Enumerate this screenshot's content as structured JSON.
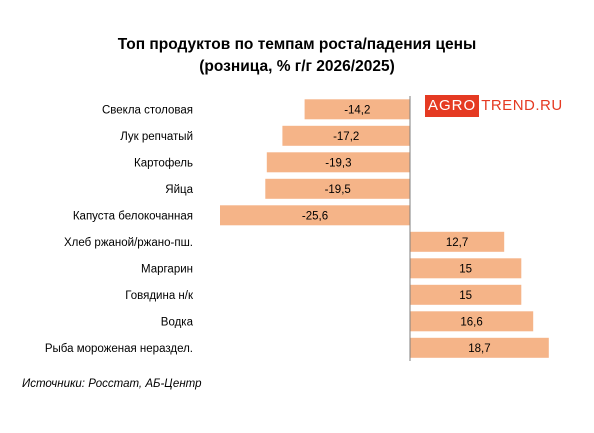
{
  "title_line1": "Топ продуктов по темпам роста/падения цены",
  "title_line2": "(розница, % г/г 2026/2025)",
  "source": "Источники: Росстат, АБ-Центр",
  "logo": {
    "boxed": "AGRO",
    "rest": "TREND.RU"
  },
  "colors": {
    "bar": "#f5b488",
    "axis": "#7f7f7f",
    "logo": "#e53a22"
  },
  "chart_data": {
    "type": "bar",
    "orientation": "horizontal",
    "title": "Топ продуктов по темпам роста/падения цены (розница, % г/г 2026/2025)",
    "categories": [
      "Свекла столовая",
      "Лук репчатый",
      "Картофель",
      "Яйца",
      "Капуста белокочанная",
      "Хлеб ржаной/ржано-пш.",
      "Маргарин",
      "Говядина н/к",
      "Водка",
      "Рыба мороженая нераздел."
    ],
    "values": [
      -14.2,
      -17.2,
      -19.3,
      -19.5,
      -25.6,
      12.7,
      15,
      15,
      16.6,
      18.7
    ],
    "labels": [
      "-14,2",
      "-17,2",
      "-19,3",
      "-19,5",
      "-25,6",
      "12,7",
      "15",
      "15",
      "16,6",
      "18,7"
    ],
    "xlim": [
      -25.6,
      18.7
    ],
    "grid": false,
    "legend": "none"
  }
}
